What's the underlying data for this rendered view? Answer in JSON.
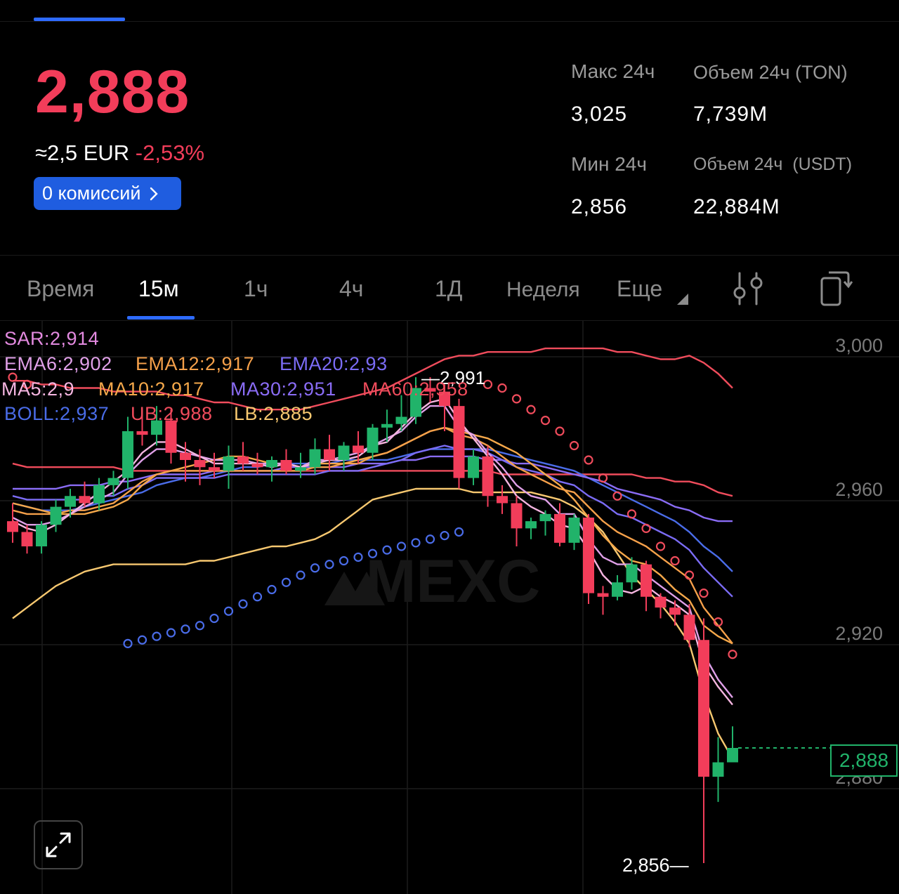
{
  "header": {
    "price": "2,888",
    "approx_prefix": "≈2,5 EUR",
    "change": "-2,53%",
    "fee_button": "0 комиссий"
  },
  "stats": {
    "high_label": "Макс 24ч",
    "high_value": "3,025",
    "vol_ton_label": "Объем 24ч (TON)",
    "vol_ton_value": "7,739M",
    "low_label": "Мин 24ч",
    "low_value": "2,856",
    "vol_usdt_label": "Объем 24ч  (USDT)",
    "vol_usdt_value": "22,884M"
  },
  "timeframes": {
    "items": [
      "Время",
      "15м",
      "1ч",
      "4ч",
      "1Д",
      "Неделя",
      "Еще"
    ],
    "active": "15м"
  },
  "icons": {
    "settings": "sliders-icon",
    "layout": "device-rotate-icon",
    "expand": "expand-icon"
  },
  "indicators": {
    "sar": "SAR:2,914",
    "ema6": "EMA6:2,902",
    "ema12": "EMA12:2,917",
    "ema20": "EMA20:2,93",
    "ma5": "MA5:2,9",
    "ma10": "MA10:2,917",
    "ma30": "MA30:2,951",
    "ma60": "MA60:2,958",
    "boll": "BOLL:2,937",
    "ub": "UB:2,988",
    "lb": "LB:2,885"
  },
  "chart_labels": {
    "high_marker": "2,991",
    "low_marker": "2,856",
    "current_price": "2,888",
    "watermark": "MEXC"
  },
  "colors": {
    "up": "#21B36A",
    "down": "#F23D5A",
    "accent": "#2E6BFF",
    "sar": "#E38AE0",
    "ema6": "#E0A0E8",
    "ema12": "#F5A04A",
    "ema20": "#7B6CF5",
    "ma5": "#F5B5E0",
    "ma10": "#F5A84A",
    "ma30": "#8A6CF5",
    "ma60": "#F04C5C",
    "boll": "#4A6CE8",
    "ub": "#F04C5C",
    "lb": "#F7C870"
  },
  "chart_data": {
    "type": "candlestick",
    "interval": "15м",
    "y_ticks": [
      "3,000",
      "2,960",
      "2,920",
      "2,880"
    ],
    "ylim": [
      2.855,
      3.01
    ],
    "candles": [
      {
        "o": 2.951,
        "h": 2.956,
        "l": 2.945,
        "c": 2.948
      },
      {
        "o": 2.948,
        "h": 2.95,
        "l": 2.942,
        "c": 2.944
      },
      {
        "o": 2.944,
        "h": 2.951,
        "l": 2.942,
        "c": 2.95
      },
      {
        "o": 2.95,
        "h": 2.957,
        "l": 2.948,
        "c": 2.955
      },
      {
        "o": 2.955,
        "h": 2.96,
        "l": 2.952,
        "c": 2.958
      },
      {
        "o": 2.958,
        "h": 2.962,
        "l": 2.955,
        "c": 2.956
      },
      {
        "o": 2.956,
        "h": 2.963,
        "l": 2.954,
        "c": 2.961
      },
      {
        "o": 2.961,
        "h": 2.965,
        "l": 2.958,
        "c": 2.963
      },
      {
        "o": 2.963,
        "h": 2.98,
        "l": 2.96,
        "c": 2.976
      },
      {
        "o": 2.976,
        "h": 2.982,
        "l": 2.972,
        "c": 2.975
      },
      {
        "o": 2.975,
        "h": 2.983,
        "l": 2.972,
        "c": 2.979
      },
      {
        "o": 2.979,
        "h": 2.982,
        "l": 2.967,
        "c": 2.97
      },
      {
        "o": 2.97,
        "h": 2.973,
        "l": 2.962,
        "c": 2.968
      },
      {
        "o": 2.968,
        "h": 2.971,
        "l": 2.961,
        "c": 2.966
      },
      {
        "o": 2.966,
        "h": 2.97,
        "l": 2.963,
        "c": 2.965
      },
      {
        "o": 2.965,
        "h": 2.972,
        "l": 2.96,
        "c": 2.969
      },
      {
        "o": 2.969,
        "h": 2.973,
        "l": 2.965,
        "c": 2.967
      },
      {
        "o": 2.967,
        "h": 2.97,
        "l": 2.964,
        "c": 2.966
      },
      {
        "o": 2.966,
        "h": 2.969,
        "l": 2.962,
        "c": 2.968
      },
      {
        "o": 2.968,
        "h": 2.971,
        "l": 2.964,
        "c": 2.965
      },
      {
        "o": 2.965,
        "h": 2.97,
        "l": 2.963,
        "c": 2.966
      },
      {
        "o": 2.966,
        "h": 2.974,
        "l": 2.964,
        "c": 2.971
      },
      {
        "o": 2.971,
        "h": 2.975,
        "l": 2.965,
        "c": 2.968
      },
      {
        "o": 2.968,
        "h": 2.973,
        "l": 2.965,
        "c": 2.972
      },
      {
        "o": 2.972,
        "h": 2.976,
        "l": 2.967,
        "c": 2.97
      },
      {
        "o": 2.97,
        "h": 2.978,
        "l": 2.968,
        "c": 2.977
      },
      {
        "o": 2.977,
        "h": 2.982,
        "l": 2.973,
        "c": 2.978
      },
      {
        "o": 2.978,
        "h": 2.986,
        "l": 2.976,
        "c": 2.98
      },
      {
        "o": 2.98,
        "h": 2.991,
        "l": 2.978,
        "c": 2.988
      },
      {
        "o": 2.988,
        "h": 2.991,
        "l": 2.984,
        "c": 2.987
      },
      {
        "o": 2.987,
        "h": 2.989,
        "l": 2.976,
        "c": 2.983
      },
      {
        "o": 2.983,
        "h": 2.985,
        "l": 2.96,
        "c": 2.963
      },
      {
        "o": 2.963,
        "h": 2.971,
        "l": 2.961,
        "c": 2.969
      },
      {
        "o": 2.969,
        "h": 2.972,
        "l": 2.955,
        "c": 2.958
      },
      {
        "o": 2.958,
        "h": 2.961,
        "l": 2.953,
        "c": 2.956
      },
      {
        "o": 2.956,
        "h": 2.958,
        "l": 2.944,
        "c": 2.949
      },
      {
        "o": 2.949,
        "h": 2.952,
        "l": 2.946,
        "c": 2.951
      },
      {
        "o": 2.951,
        "h": 2.954,
        "l": 2.947,
        "c": 2.953
      },
      {
        "o": 2.953,
        "h": 2.956,
        "l": 2.944,
        "c": 2.945
      },
      {
        "o": 2.945,
        "h": 2.953,
        "l": 2.943,
        "c": 2.952
      },
      {
        "o": 2.952,
        "h": 2.953,
        "l": 2.928,
        "c": 2.931
      },
      {
        "o": 2.931,
        "h": 2.933,
        "l": 2.925,
        "c": 2.93
      },
      {
        "o": 2.93,
        "h": 2.936,
        "l": 2.929,
        "c": 2.934
      },
      {
        "o": 2.934,
        "h": 2.941,
        "l": 2.932,
        "c": 2.939
      },
      {
        "o": 2.939,
        "h": 2.94,
        "l": 2.926,
        "c": 2.93
      },
      {
        "o": 2.93,
        "h": 2.931,
        "l": 2.924,
        "c": 2.927
      },
      {
        "o": 2.927,
        "h": 2.929,
        "l": 2.922,
        "c": 2.925
      },
      {
        "o": 2.925,
        "h": 2.928,
        "l": 2.916,
        "c": 2.918
      },
      {
        "o": 2.918,
        "h": 2.924,
        "l": 2.856,
        "c": 2.88
      },
      {
        "o": 2.88,
        "h": 2.891,
        "l": 2.873,
        "c": 2.884
      },
      {
        "o": 2.884,
        "h": 2.894,
        "l": 2.884,
        "c": 2.888
      }
    ],
    "sar": [
      2.991,
      2.989,
      2.987,
      2.984,
      2.98,
      2.977,
      2.974,
      2.972,
      2.97,
      2.972,
      2.974,
      2.985,
      2.986,
      2.987,
      2.988,
      2.989,
      2.99,
      2.991,
      2.991,
      2.991,
      2.991,
      2.991,
      2.991,
      2.991,
      2.991,
      2.991,
      2.991,
      2.991,
      2.991,
      2.991,
      2.991,
      2.99,
      2.99,
      2.989,
      2.988,
      2.985,
      2.982,
      2.979,
      2.976,
      2.972,
      2.968,
      2.963,
      2.958,
      2.953,
      2.949,
      2.944,
      2.94,
      2.936,
      2.931,
      2.923,
      2.914
    ],
    "sar_pre": [
      2.94,
      2.941,
      2.942,
      2.943,
      2.944,
      2.945,
      2.947,
      2.949,
      2.951,
      2.953,
      2.955,
      2.957,
      2.959,
      2.961,
      2.962,
      2.963,
      2.964,
      2.965,
      2.966,
      2.967,
      2.968,
      2.969,
      2.97,
      2.971
    ],
    "ma5": [
      2.951,
      2.949,
      2.948,
      2.95,
      2.953,
      2.956,
      2.959,
      2.962,
      2.965,
      2.97,
      2.973,
      2.973,
      2.971,
      2.969,
      2.967,
      2.967,
      2.967,
      2.967,
      2.966,
      2.967,
      2.966,
      2.967,
      2.968,
      2.968,
      2.969,
      2.972,
      2.973,
      2.977,
      2.981,
      2.984,
      2.985,
      2.979,
      2.974,
      2.969,
      2.964,
      2.958,
      2.955,
      2.953,
      2.95,
      2.949,
      2.943,
      2.936,
      2.932,
      2.931,
      2.933,
      2.93,
      2.928,
      2.925,
      2.911,
      2.905,
      2.9
    ],
    "ema6": [
      2.952,
      2.95,
      2.95,
      2.951,
      2.953,
      2.955,
      2.957,
      2.959,
      2.964,
      2.968,
      2.971,
      2.971,
      2.97,
      2.969,
      2.968,
      2.968,
      2.968,
      2.967,
      2.967,
      2.967,
      2.966,
      2.968,
      2.968,
      2.969,
      2.97,
      2.972,
      2.974,
      2.976,
      2.98,
      2.983,
      2.983,
      2.977,
      2.975,
      2.97,
      2.966,
      2.961,
      2.958,
      2.957,
      2.953,
      2.953,
      2.946,
      2.941,
      2.939,
      2.939,
      2.936,
      2.933,
      2.93,
      2.927,
      2.914,
      2.907,
      2.902
    ],
    "ema12": [
      2.954,
      2.953,
      2.953,
      2.953,
      2.954,
      2.954,
      2.955,
      2.956,
      2.959,
      2.962,
      2.964,
      2.965,
      2.965,
      2.965,
      2.965,
      2.965,
      2.965,
      2.965,
      2.965,
      2.965,
      2.965,
      2.966,
      2.966,
      2.967,
      2.967,
      2.969,
      2.97,
      2.972,
      2.974,
      2.976,
      2.977,
      2.975,
      2.974,
      2.972,
      2.969,
      2.966,
      2.964,
      2.962,
      2.96,
      2.959,
      2.955,
      2.951,
      2.948,
      2.946,
      2.944,
      2.941,
      2.938,
      2.935,
      2.927,
      2.922,
      2.917
    ],
    "ma10": [
      2.956,
      2.955,
      2.954,
      2.953,
      2.953,
      2.953,
      2.954,
      2.955,
      2.957,
      2.961,
      2.964,
      2.965,
      2.966,
      2.967,
      2.968,
      2.969,
      2.969,
      2.968,
      2.967,
      2.967,
      2.966,
      2.967,
      2.967,
      2.967,
      2.968,
      2.969,
      2.97,
      2.972,
      2.974,
      2.976,
      2.977,
      2.976,
      2.975,
      2.974,
      2.972,
      2.97,
      2.967,
      2.964,
      2.961,
      2.957,
      2.952,
      2.947,
      2.943,
      2.94,
      2.939,
      2.936,
      2.932,
      2.929,
      2.922,
      2.919,
      2.917
    ],
    "ema20": [
      2.958,
      2.957,
      2.957,
      2.957,
      2.957,
      2.957,
      2.958,
      2.958,
      2.96,
      2.961,
      2.963,
      2.963,
      2.963,
      2.963,
      2.963,
      2.964,
      2.964,
      2.964,
      2.964,
      2.964,
      2.964,
      2.964,
      2.965,
      2.965,
      2.965,
      2.966,
      2.967,
      2.968,
      2.97,
      2.971,
      2.972,
      2.971,
      2.971,
      2.97,
      2.968,
      2.966,
      2.965,
      2.964,
      2.962,
      2.961,
      2.958,
      2.956,
      2.953,
      2.952,
      2.95,
      2.948,
      2.946,
      2.943,
      2.938,
      2.934,
      2.93
    ],
    "ma30": [
      2.96,
      2.96,
      2.96,
      2.96,
      2.961,
      2.961,
      2.961,
      2.962,
      2.962,
      2.963,
      2.964,
      2.964,
      2.964,
      2.964,
      2.965,
      2.965,
      2.965,
      2.965,
      2.965,
      2.966,
      2.966,
      2.966,
      2.966,
      2.966,
      2.967,
      2.967,
      2.967,
      2.968,
      2.968,
      2.969,
      2.969,
      2.969,
      2.969,
      2.968,
      2.968,
      2.967,
      2.967,
      2.966,
      2.965,
      2.964,
      2.963,
      2.962,
      2.96,
      2.959,
      2.958,
      2.957,
      2.955,
      2.954,
      2.952,
      2.951,
      2.951
    ],
    "ma60": [
      2.967,
      2.966,
      2.966,
      2.966,
      2.966,
      2.966,
      2.966,
      2.966,
      2.965,
      2.965,
      2.965,
      2.965,
      2.965,
      2.965,
      2.965,
      2.965,
      2.965,
      2.965,
      2.965,
      2.965,
      2.965,
      2.965,
      2.965,
      2.965,
      2.965,
      2.965,
      2.965,
      2.965,
      2.965,
      2.965,
      2.965,
      2.965,
      2.965,
      2.965,
      2.964,
      2.964,
      2.964,
      2.964,
      2.964,
      2.964,
      2.964,
      2.964,
      2.964,
      2.964,
      2.963,
      2.963,
      2.962,
      2.962,
      2.961,
      2.959,
      2.958
    ],
    "boll": [
      2.956,
      2.955,
      2.954,
      2.954,
      2.954,
      2.955,
      2.956,
      2.957,
      2.958,
      2.959,
      2.961,
      2.962,
      2.963,
      2.963,
      2.964,
      2.965,
      2.966,
      2.966,
      2.967,
      2.967,
      2.967,
      2.967,
      2.967,
      2.968,
      2.968,
      2.968,
      2.968,
      2.969,
      2.97,
      2.971,
      2.971,
      2.971,
      2.971,
      2.971,
      2.97,
      2.969,
      2.968,
      2.967,
      2.966,
      2.965,
      2.963,
      2.961,
      2.959,
      2.957,
      2.955,
      2.953,
      2.951,
      2.948,
      2.944,
      2.941,
      2.937
    ],
    "ub": [
      2.99,
      2.99,
      2.989,
      2.989,
      2.988,
      2.988,
      2.988,
      2.987,
      2.987,
      2.987,
      2.987,
      2.986,
      2.986,
      2.985,
      2.984,
      2.984,
      2.983,
      2.982,
      2.982,
      2.982,
      2.982,
      2.983,
      2.984,
      2.985,
      2.986,
      2.987,
      2.988,
      2.99,
      2.992,
      2.994,
      2.996,
      2.997,
      2.997,
      2.998,
      2.998,
      2.998,
      2.998,
      2.999,
      2.999,
      2.999,
      2.999,
      2.999,
      2.998,
      2.998,
      2.997,
      2.996,
      2.996,
      2.997,
      2.995,
      2.992,
      2.988
    ],
    "lb": [
      2.924,
      2.927,
      2.93,
      2.933,
      2.935,
      2.937,
      2.938,
      2.939,
      2.939,
      2.939,
      2.939,
      2.939,
      2.939,
      2.94,
      2.94,
      2.941,
      2.942,
      2.943,
      2.944,
      2.944,
      2.945,
      2.946,
      2.948,
      2.951,
      2.954,
      2.957,
      2.958,
      2.959,
      2.96,
      2.96,
      2.96,
      2.96,
      2.959,
      2.959,
      2.959,
      2.959,
      2.959,
      2.958,
      2.957,
      2.955,
      2.952,
      2.948,
      2.942,
      2.936,
      2.932,
      2.928,
      2.923,
      2.917,
      2.903,
      2.892,
      2.885
    ]
  }
}
